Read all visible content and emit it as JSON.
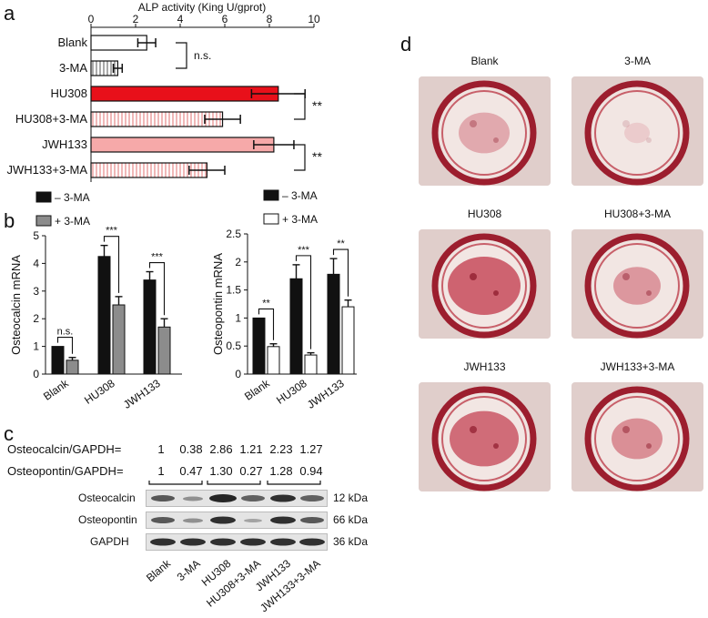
{
  "panel_labels": {
    "a": "a",
    "b": "b",
    "c": "c",
    "d": "d"
  },
  "chart_data": [
    {
      "id": "a",
      "type": "bar",
      "orientation": "horizontal",
      "title": "ALP activity (King U/gprot)",
      "xlim": [
        0,
        10
      ],
      "xticks": [
        "0",
        "2",
        "4",
        "6",
        "8",
        "10"
      ],
      "categories": [
        "Blank",
        "3-MA",
        "HU308",
        "HU308+3-MA",
        "JWH133",
        "JWH133+3-MA"
      ],
      "values": [
        2.5,
        1.2,
        8.4,
        5.9,
        8.2,
        5.2
      ],
      "errors": [
        0.4,
        0.2,
        1.2,
        0.8,
        0.9,
        0.8
      ],
      "fills": [
        "#ffffff",
        "hatch",
        "#e8101a",
        "hatch-red",
        "#f6a9a9",
        "hatch-red"
      ],
      "annotations": [
        {
          "pair": [
            0,
            1
          ],
          "text": "n.s."
        },
        {
          "pair": [
            2,
            3
          ],
          "text": "**"
        },
        {
          "pair": [
            4,
            5
          ],
          "text": "**"
        }
      ]
    },
    {
      "id": "b-left",
      "type": "bar",
      "ylabel": "Osteocalcin mRNA",
      "ylim": [
        0,
        5
      ],
      "yticks": [
        "0",
        "1",
        "2",
        "3",
        "4",
        "5"
      ],
      "categories": [
        "Blank",
        "HU308",
        "JWH133"
      ],
      "legend": [
        "– 3-MA",
        "+ 3-MA"
      ],
      "series": [
        {
          "name": "– 3-MA",
          "color": "#111111",
          "values": [
            1.0,
            4.25,
            3.4
          ],
          "errors": [
            0.0,
            0.4,
            0.3
          ]
        },
        {
          "name": "+ 3-MA",
          "color": "#8c8c8c",
          "values": [
            0.5,
            2.5,
            1.7
          ],
          "errors": [
            0.1,
            0.3,
            0.3
          ]
        }
      ],
      "annotations": [
        "n.s.",
        "***",
        "***"
      ]
    },
    {
      "id": "b-right",
      "type": "bar",
      "ylabel": "Osteopontin mRNA",
      "ylim": [
        0,
        2.5
      ],
      "yticks": [
        "0",
        "0.5",
        "1",
        "1.5",
        "2",
        "2.5"
      ],
      "categories": [
        "Blank",
        "HU308",
        "JWH133"
      ],
      "legend": [
        "– 3-MA",
        "+ 3-MA"
      ],
      "series": [
        {
          "name": "– 3-MA",
          "color": "#111111",
          "values": [
            1.0,
            1.7,
            1.78
          ],
          "errors": [
            0.0,
            0.25,
            0.28
          ]
        },
        {
          "name": "+ 3-MA",
          "color": "#ffffff",
          "values": [
            0.49,
            0.34,
            1.2
          ],
          "errors": [
            0.05,
            0.04,
            0.12
          ]
        }
      ],
      "annotations": [
        "**",
        "***",
        "**"
      ]
    }
  ],
  "blot": {
    "ratio_rows": [
      {
        "label": "Osteocalcin/GAPDH=",
        "values": [
          "1",
          "0.38",
          "2.86",
          "1.21",
          "2.23",
          "1.27"
        ]
      },
      {
        "label": "Osteopontin/GAPDH=",
        "values": [
          "1",
          "0.47",
          "1.30",
          "0.27",
          "1.28",
          "0.94"
        ]
      }
    ],
    "bands": [
      {
        "name": "Osteocalcin",
        "size": "12 kDa"
      },
      {
        "name": "Osteopontin",
        "size": "66 kDa"
      },
      {
        "name": "GAPDH",
        "size": "36 kDa"
      }
    ],
    "lanes": [
      "Blank",
      "3-MA",
      "HU308",
      "HU308+3-MA",
      "JWH133",
      "JWH133+3-MA"
    ]
  },
  "photos": [
    {
      "label": "Blank"
    },
    {
      "label": "3-MA"
    },
    {
      "label": "HU308"
    },
    {
      "label": "HU308+3-MA"
    },
    {
      "label": "JWH133"
    },
    {
      "label": "JWH133+3-MA"
    }
  ]
}
